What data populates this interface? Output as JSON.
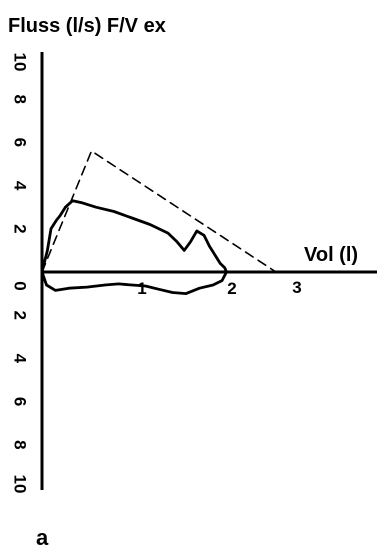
{
  "chart_data": {
    "type": "line",
    "title": "Fluss (l/s) F/V ex",
    "xlabel": "Vol (l)",
    "ylabel": "",
    "panel_label": "a",
    "xlim": [
      0,
      3.3
    ],
    "ylim": [
      -10,
      10
    ],
    "x_ticks": [
      {
        "value": 1,
        "label": "1"
      },
      {
        "value": 2,
        "label": "2"
      },
      {
        "value": 3,
        "label": "3"
      }
    ],
    "y_ticks_up": [
      {
        "value": 10,
        "label": "10"
      },
      {
        "value": 8,
        "label": "8"
      },
      {
        "value": 6,
        "label": "6"
      },
      {
        "value": 4,
        "label": "4"
      },
      {
        "value": 2,
        "label": "2"
      },
      {
        "value": 0,
        "label": "0"
      }
    ],
    "y_ticks_down": [
      {
        "value": -2,
        "label": "2"
      },
      {
        "value": -4,
        "label": "4"
      },
      {
        "value": -6,
        "label": "6"
      },
      {
        "value": -8,
        "label": "8"
      },
      {
        "value": -10,
        "label": "10"
      }
    ],
    "series": [
      {
        "style": "dashed",
        "x": [
          0,
          0.55,
          2.6
        ],
        "y": [
          0,
          5.6,
          0
        ]
      },
      {
        "style": "solid",
        "x": [
          0,
          0.06,
          0.1,
          0.16,
          0.2,
          0.26,
          0.34,
          0.45,
          0.6,
          0.8,
          1.0,
          1.2,
          1.4,
          1.5,
          1.58,
          1.65,
          1.72,
          1.8,
          1.86,
          1.92,
          1.98,
          2.03,
          2.05
        ],
        "y": [
          0,
          1.0,
          2.0,
          2.4,
          2.6,
          3.0,
          3.3,
          3.2,
          3.0,
          2.8,
          2.5,
          2.2,
          1.8,
          1.4,
          1.0,
          1.4,
          1.9,
          1.7,
          1.2,
          0.8,
          0.4,
          0.2,
          0
        ],
        "y_return": [],
        "x_return": []
      },
      {
        "style": "solid",
        "x": [
          2.05,
          2.0,
          1.9,
          1.75,
          1.6,
          1.45,
          1.3,
          1.15,
          1.0,
          0.85,
          0.7,
          0.5,
          0.3,
          0.15,
          0.05,
          0
        ],
        "y": [
          0,
          -0.4,
          -0.6,
          -0.75,
          -1.0,
          -0.95,
          -0.8,
          -0.65,
          -0.6,
          -0.55,
          -0.6,
          -0.7,
          -0.75,
          -0.85,
          -0.6,
          0
        ]
      }
    ]
  }
}
